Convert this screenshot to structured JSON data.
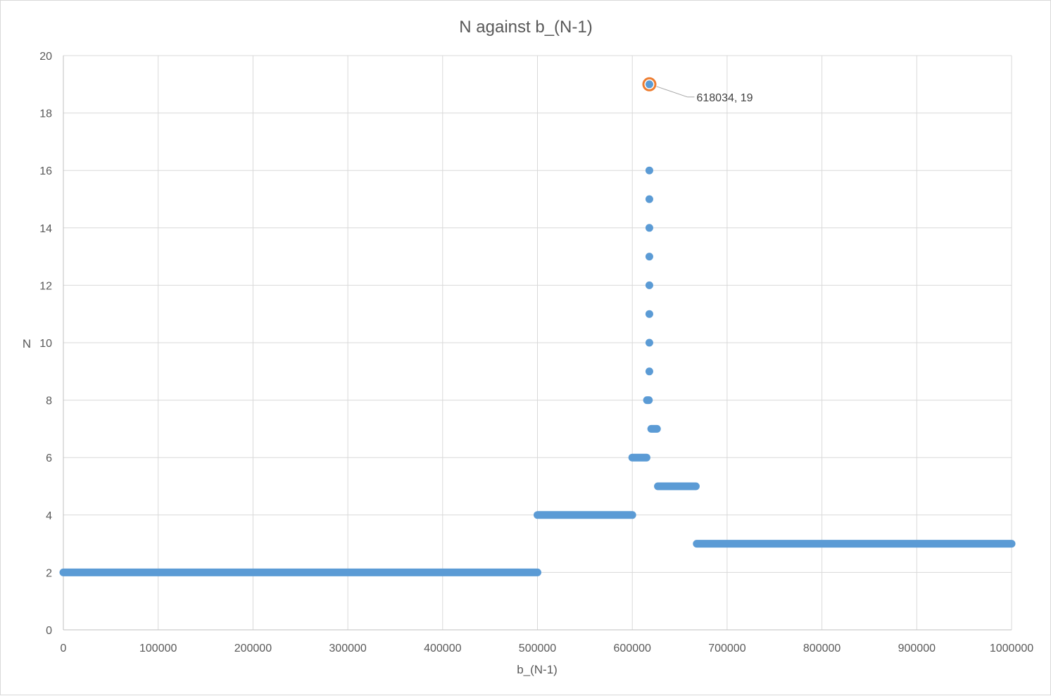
{
  "chart_data": {
    "type": "scatter",
    "title": "N against b_(N-1)",
    "xlabel": "b_(N-1)",
    "ylabel": "N",
    "xlim": [
      0,
      1000000
    ],
    "ylim": [
      0,
      20
    ],
    "x_ticks": [
      0,
      100000,
      200000,
      300000,
      400000,
      500000,
      600000,
      700000,
      800000,
      900000,
      1000000
    ],
    "y_ticks": [
      0,
      2,
      4,
      6,
      8,
      10,
      12,
      14,
      16,
      18,
      20
    ],
    "x_tick_labels": [
      "0",
      "100000",
      "200000",
      "300000",
      "400000",
      "500000",
      "600000",
      "700000",
      "800000",
      "900000",
      "1000000"
    ],
    "y_tick_labels": [
      "0",
      "2",
      "4",
      "6",
      "8",
      "10",
      "12",
      "14",
      "16",
      "18",
      "20"
    ],
    "grid": true,
    "legend": "none",
    "series_color": "#5b9bd5",
    "highlight_color": "#ed7d31",
    "segments": [
      {
        "y": 2,
        "x_start": 0,
        "x_end": 500000
      },
      {
        "y": 4,
        "x_start": 500000,
        "x_end": 600000
      },
      {
        "y": 6,
        "x_start": 600000,
        "x_end": 615000
      },
      {
        "y": 8,
        "x_start": 615500,
        "x_end": 617500
      },
      {
        "y": 7,
        "x_start": 620000,
        "x_end": 626000
      },
      {
        "y": 5,
        "x_start": 627000,
        "x_end": 667000
      },
      {
        "y": 3,
        "x_start": 668000,
        "x_end": 1000000
      }
    ],
    "points": [
      {
        "x": 618000,
        "y": 9
      },
      {
        "x": 618000,
        "y": 10
      },
      {
        "x": 618000,
        "y": 11
      },
      {
        "x": 618000,
        "y": 12
      },
      {
        "x": 618000,
        "y": 13
      },
      {
        "x": 618000,
        "y": 14
      },
      {
        "x": 618000,
        "y": 15
      },
      {
        "x": 618000,
        "y": 16
      }
    ],
    "highlight_point": {
      "x": 618034,
      "y": 19,
      "label": "618034, 19"
    }
  }
}
